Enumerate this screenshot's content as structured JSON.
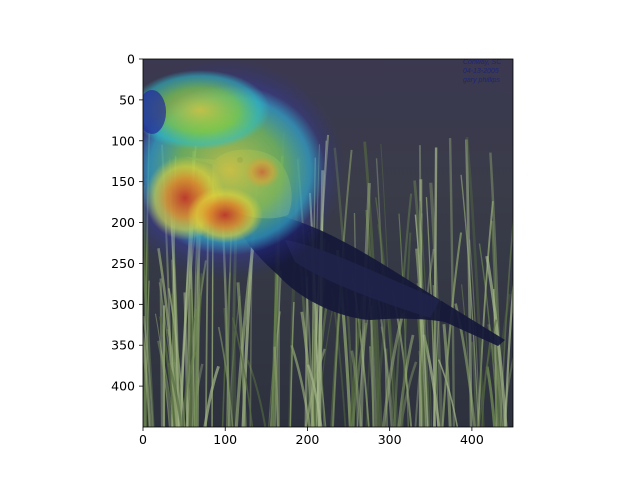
{
  "figure": {
    "x_axis": {
      "range": [
        0,
        450
      ],
      "ticks": [
        "0",
        "100",
        "200",
        "300",
        "400"
      ]
    },
    "y_axis": {
      "range": [
        0,
        450
      ],
      "inverted": true,
      "ticks": [
        "0",
        "50",
        "100",
        "150",
        "200",
        "250",
        "300",
        "350",
        "400"
      ]
    },
    "image": {
      "subject": "bird in grass with attention heatmap overlay",
      "colormap": "jet",
      "watermark": [
        "Conway, SC",
        "04-13-2005",
        "gary phillips"
      ]
    }
  },
  "colors": {
    "grass_dark": "#3a3f33",
    "grass_light": "#8aa06a",
    "bird_body": "#151838",
    "bird_head": "#b98a3a",
    "overlay_low": "#2a2fa8",
    "overlay_high": "#d4442a"
  }
}
